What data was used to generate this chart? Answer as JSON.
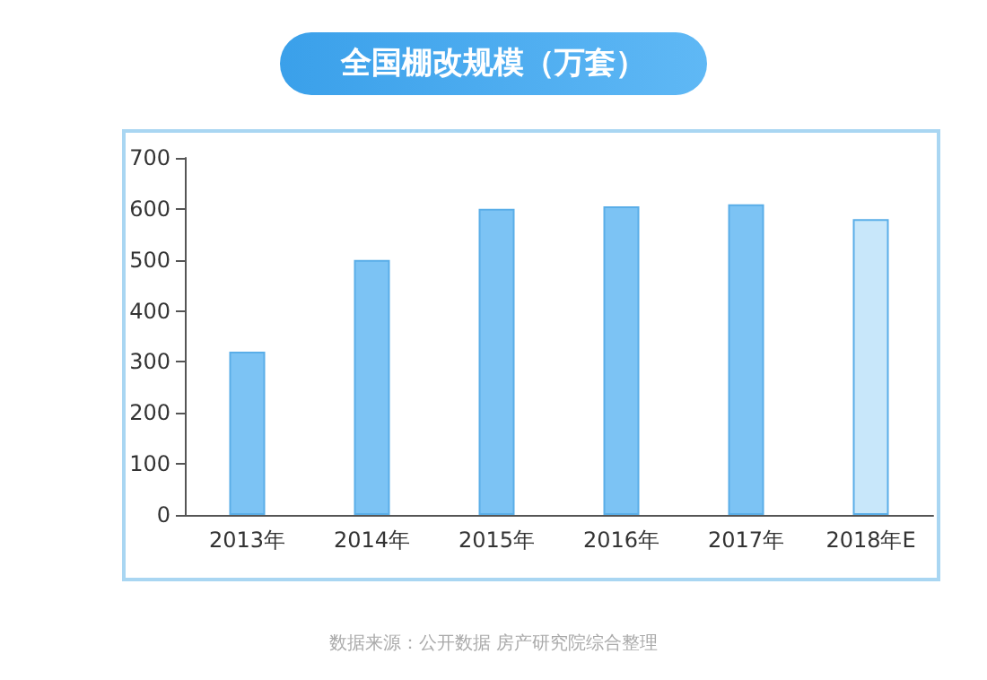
{
  "chart_data": {
    "type": "bar",
    "title": "全国棚改规模（万套）",
    "categories": [
      "2013年",
      "2014年",
      "2015年",
      "2016年",
      "2017年",
      "2018年E"
    ],
    "values": [
      320,
      500,
      600,
      605,
      609,
      580
    ],
    "colors": [
      "#7cc3f4",
      "#7cc3f4",
      "#7cc3f4",
      "#7cc3f4",
      "#7cc3f4",
      "#c8e7fa"
    ],
    "ylim": [
      0,
      700
    ],
    "yticks": [
      0,
      100,
      200,
      300,
      400,
      500,
      600,
      700
    ],
    "grid": false,
    "annotations": [
      "数据来源：公开数据 房产研究院综合整理"
    ]
  }
}
